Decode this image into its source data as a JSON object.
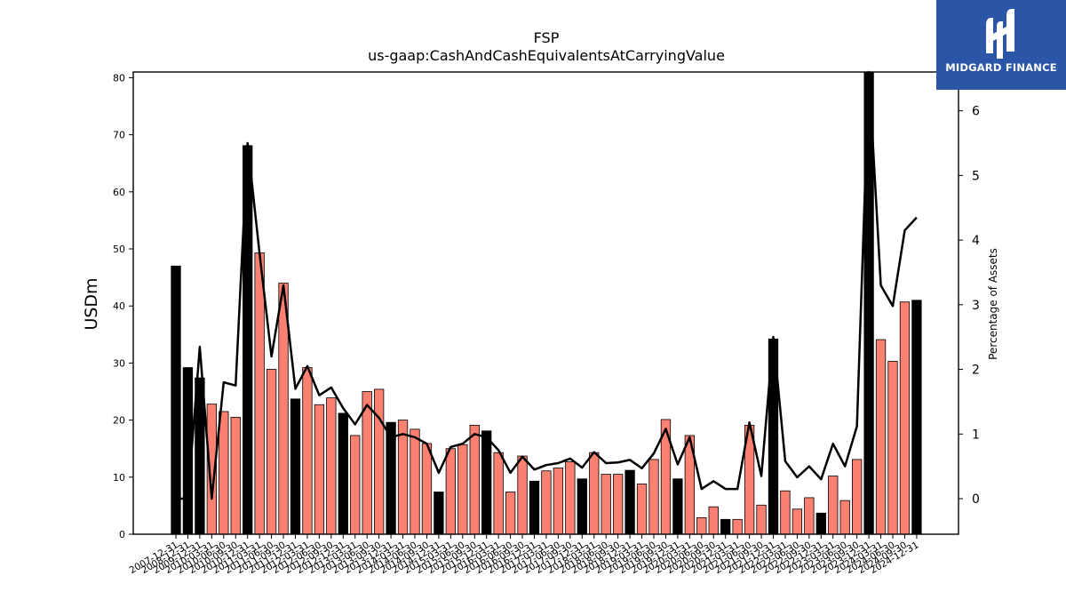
{
  "chart_data": {
    "type": "bar",
    "title": "FSP",
    "subtitle": "us-gaap:CashAndCashEquivalentsAtCarryingValue",
    "ylabel": "USDm",
    "y2label": "Percentage of Assets",
    "ylim": [
      0,
      81
    ],
    "y2lim": [
      -0.55,
      6.6
    ],
    "yticks": [
      0,
      10,
      20,
      30,
      40,
      50,
      60,
      70,
      80
    ],
    "y2ticks": [
      0,
      1,
      2,
      3,
      4,
      5,
      6
    ],
    "grid": false,
    "colors": {
      "annual_bar": "#000000",
      "quarter_bar": "#fa8072",
      "bar_edge": "#000000",
      "line": "#000000"
    },
    "categories": [
      "2007-12-31",
      "2008-12-31",
      "2009-12-31",
      "2010-03-31",
      "2010-06-30",
      "2010-09-30",
      "2010-12-31",
      "2011-03-31",
      "2011-06-30",
      "2011-09-30",
      "2011-12-31",
      "2012-03-31",
      "2012-06-30",
      "2012-09-30",
      "2012-12-31",
      "2013-03-31",
      "2013-06-30",
      "2013-09-30",
      "2013-12-31",
      "2014-03-31",
      "2014-06-30",
      "2014-09-30",
      "2014-12-31",
      "2015-03-31",
      "2015-06-30",
      "2015-09-30",
      "2015-12-31",
      "2016-03-31",
      "2016-06-30",
      "2016-09-30",
      "2016-12-31",
      "2017-03-31",
      "2017-06-30",
      "2017-09-30",
      "2017-12-31",
      "2018-03-31",
      "2018-06-30",
      "2018-09-30",
      "2018-12-31",
      "2019-03-31",
      "2019-06-30",
      "2019-09-30",
      "2019-12-31",
      "2020-03-31",
      "2020-06-30",
      "2020-09-30",
      "2020-12-31",
      "2021-03-31",
      "2021-06-30",
      "2021-09-30",
      "2021-12-31",
      "2022-03-31",
      "2022-06-30",
      "2022-09-30",
      "2022-12-31",
      "2023-03-31",
      "2023-06-30",
      "2023-09-30",
      "2023-12-31",
      "2024-03-31",
      "2024-06-30",
      "2024-09-30",
      "2024-12-31"
    ],
    "bar_kind": [
      "annual",
      "annual",
      "annual",
      "quarter",
      "quarter",
      "quarter",
      "annual",
      "quarter",
      "quarter",
      "quarter",
      "annual",
      "quarter",
      "quarter",
      "quarter",
      "annual",
      "quarter",
      "quarter",
      "quarter",
      "annual",
      "quarter",
      "quarter",
      "quarter",
      "annual",
      "quarter",
      "quarter",
      "quarter",
      "annual",
      "quarter",
      "quarter",
      "quarter",
      "annual",
      "quarter",
      "quarter",
      "quarter",
      "annual",
      "quarter",
      "quarter",
      "quarter",
      "annual",
      "quarter",
      "quarter",
      "quarter",
      "annual",
      "quarter",
      "quarter",
      "quarter",
      "annual",
      "quarter",
      "quarter",
      "quarter",
      "annual",
      "quarter",
      "quarter",
      "quarter",
      "annual",
      "quarter",
      "quarter",
      "quarter",
      "annual",
      "quarter",
      "quarter",
      "quarter",
      "annual"
    ],
    "series": [
      {
        "name": "USDm",
        "values": [
          47.0,
          29.2,
          27.4,
          22.8,
          21.5,
          20.5,
          68.1,
          49.3,
          28.9,
          44.0,
          23.7,
          29.2,
          22.7,
          23.9,
          21.2,
          17.3,
          25.0,
          25.4,
          19.6,
          20.0,
          18.4,
          15.9,
          7.4,
          15.0,
          15.7,
          19.1,
          18.1,
          14.3,
          7.4,
          13.7,
          9.3,
          11.1,
          11.6,
          12.7,
          9.7,
          14.3,
          10.5,
          10.5,
          11.2,
          8.8,
          13.1,
          20.1,
          9.7,
          17.3,
          2.9,
          4.8,
          2.6,
          2.6,
          19.1,
          5.1,
          34.2,
          7.6,
          4.4,
          6.4,
          3.7,
          10.2,
          5.9,
          13.1,
          81.0,
          34.1,
          30.3,
          40.7,
          41.0
        ]
      },
      {
        "name": "Percentage of Assets",
        "values": [
          0.0,
          0.0,
          2.35,
          0.0,
          1.8,
          1.75,
          5.5,
          3.8,
          2.2,
          3.3,
          1.7,
          2.05,
          1.6,
          1.72,
          1.4,
          1.15,
          1.45,
          1.25,
          0.95,
          1.0,
          0.95,
          0.85,
          0.4,
          0.8,
          0.85,
          1.0,
          0.95,
          0.75,
          0.4,
          0.65,
          0.45,
          0.52,
          0.55,
          0.62,
          0.48,
          0.72,
          0.55,
          0.56,
          0.6,
          0.47,
          0.7,
          1.08,
          0.53,
          0.95,
          0.15,
          0.27,
          0.15,
          0.15,
          1.18,
          0.35,
          2.5,
          0.58,
          0.33,
          0.5,
          0.3,
          0.85,
          0.5,
          1.12,
          6.6,
          3.3,
          2.98,
          4.15,
          4.35
        ]
      }
    ]
  },
  "brand": {
    "name": "MIDGARD FINANCE",
    "logo_icon": "midgard-logo-icon",
    "color": "#2b56a7"
  }
}
